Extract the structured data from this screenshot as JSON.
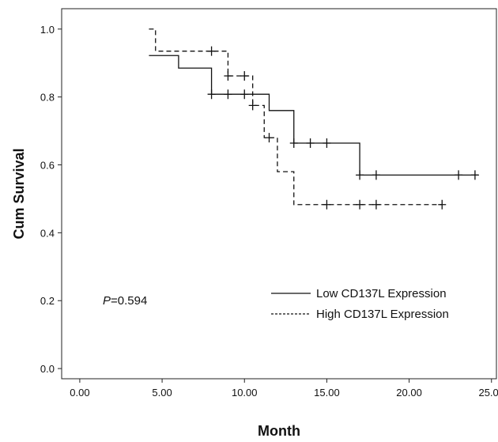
{
  "chart_data": {
    "type": "line",
    "title": "",
    "xlabel": "Month",
    "ylabel": "Cum Survival",
    "xlim": [
      -1.1,
      25.3
    ],
    "ylim": [
      -0.03,
      1.06
    ],
    "x_ticks": [
      "0.00",
      "5.00",
      "10.00",
      "15.00",
      "20.00",
      "25.00"
    ],
    "x_tick_values": [
      0,
      5,
      10,
      15,
      20,
      25
    ],
    "y_ticks": [
      "0.0",
      "0.2",
      "0.4",
      "0.6",
      "0.8",
      "1.0"
    ],
    "y_tick_values": [
      0,
      0.2,
      0.4,
      0.6,
      0.8,
      1.0
    ],
    "grid": false,
    "legend_position": "bottom-right",
    "annotation": {
      "prefix": "P",
      "value": "=0.594"
    },
    "series": [
      {
        "name": "Low CD137L Expression",
        "style": "solid",
        "color": "#111111",
        "steps": [
          [
            4.2,
            0.922
          ],
          [
            6.0,
            0.885
          ],
          [
            8.0,
            0.808
          ],
          [
            11.5,
            0.76
          ],
          [
            13.0,
            0.664
          ],
          [
            17.0,
            0.57
          ],
          [
            24.2,
            0.57
          ]
        ],
        "censored": [
          [
            8.0,
            0.808
          ],
          [
            9.0,
            0.808
          ],
          [
            10.0,
            0.808
          ],
          [
            13.0,
            0.664
          ],
          [
            14.0,
            0.664
          ],
          [
            15.0,
            0.664
          ],
          [
            17.0,
            0.57
          ],
          [
            18.0,
            0.57
          ],
          [
            23.0,
            0.57
          ],
          [
            24.0,
            0.57
          ]
        ]
      },
      {
        "name": "High CD137L Expression",
        "style": "dashed",
        "color": "#111111",
        "steps": [
          [
            4.2,
            1.0
          ],
          [
            4.6,
            0.935
          ],
          [
            9.0,
            0.862
          ],
          [
            10.5,
            0.775
          ],
          [
            11.2,
            0.68
          ],
          [
            12.0,
            0.58
          ],
          [
            13.0,
            0.483
          ],
          [
            22.0,
            0.483
          ]
        ],
        "censored": [
          [
            8.0,
            0.935
          ],
          [
            9.0,
            0.862
          ],
          [
            10.0,
            0.862
          ],
          [
            10.5,
            0.775
          ],
          [
            11.5,
            0.68
          ],
          [
            15.0,
            0.483
          ],
          [
            17.0,
            0.483
          ],
          [
            18.0,
            0.483
          ],
          [
            22.0,
            0.483
          ]
        ]
      }
    ]
  }
}
